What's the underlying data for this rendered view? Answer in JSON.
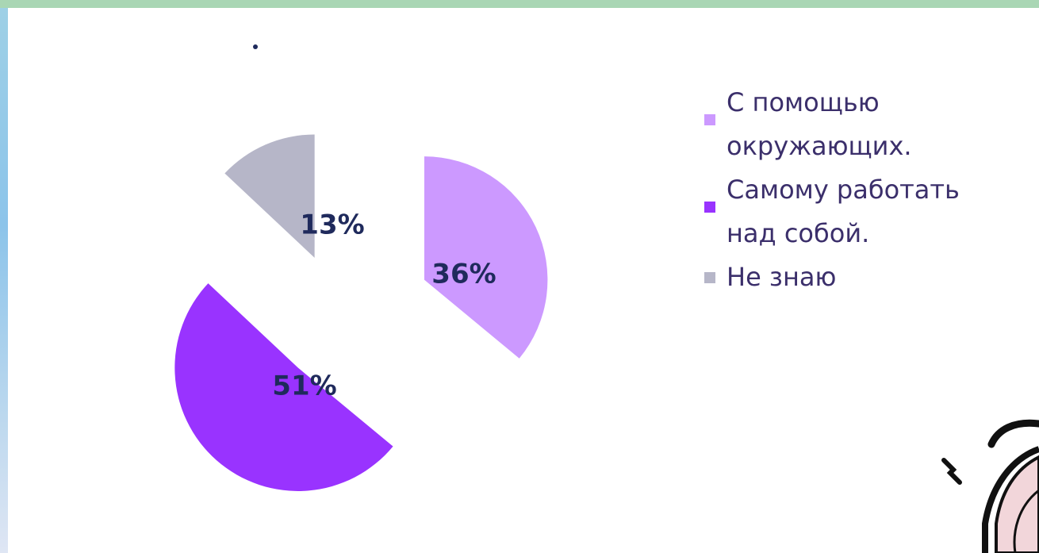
{
  "chart_data": {
    "type": "pie",
    "title": "",
    "title_mark": "•",
    "exploded": true,
    "categories": [
      "С помощью окружающих.",
      "Самому работать над собой.",
      "Не знаю"
    ],
    "values": [
      36,
      51,
      13
    ],
    "labels": [
      "36%",
      "51%",
      "13%"
    ],
    "colors": [
      "#cc99ff",
      "#9933ff",
      "#b6b6c8"
    ],
    "legend": {
      "placement": "right",
      "entries": [
        {
          "label": "С помощью окружающих.",
          "color": "#cc99ff"
        },
        {
          "label": "Самому работать над собой.",
          "color": "#9933ff"
        },
        {
          "label": "Не знаю",
          "color": "#b6b6c8"
        }
      ]
    }
  },
  "colors": {
    "label_text": "#1f2a5c",
    "legend_text": "#3b2f6b",
    "top_band": "#a9d6b4"
  },
  "decor": {
    "cartoon_icon": "cartoon-character-fragment"
  }
}
